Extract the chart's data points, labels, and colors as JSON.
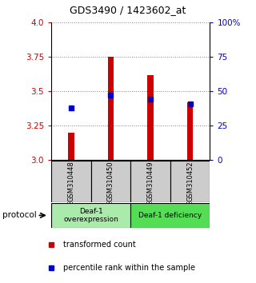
{
  "title": "GDS3490 / 1423602_at",
  "samples": [
    "GSM310448",
    "GSM310450",
    "GSM310449",
    "GSM310452"
  ],
  "red_values": [
    3.2,
    3.75,
    3.62,
    3.42
  ],
  "blue_values": [
    3.38,
    3.47,
    3.44,
    3.41
  ],
  "ylim": [
    3.0,
    4.0
  ],
  "yticks_left": [
    3.0,
    3.25,
    3.5,
    3.75,
    4.0
  ],
  "yticks_right": [
    0,
    25,
    50,
    75,
    100
  ],
  "ylabel_right_labels": [
    "0",
    "25",
    "50",
    "75",
    "100%"
  ],
  "left_color": "#cc0000",
  "right_color": "#0000cc",
  "bar_color": "#cc0000",
  "dot_color": "#0000cc",
  "protocol_groups": [
    {
      "label": "Deaf-1\noverexpression",
      "color": "#aaeaaa"
    },
    {
      "label": "Deaf-1 deficiency",
      "color": "#55dd55"
    }
  ],
  "sample_bg_color": "#cccccc",
  "legend_red_label": "transformed count",
  "legend_blue_label": "percentile rank within the sample",
  "protocol_label": "protocol",
  "background_color": "#ffffff",
  "bar_width": 0.15
}
